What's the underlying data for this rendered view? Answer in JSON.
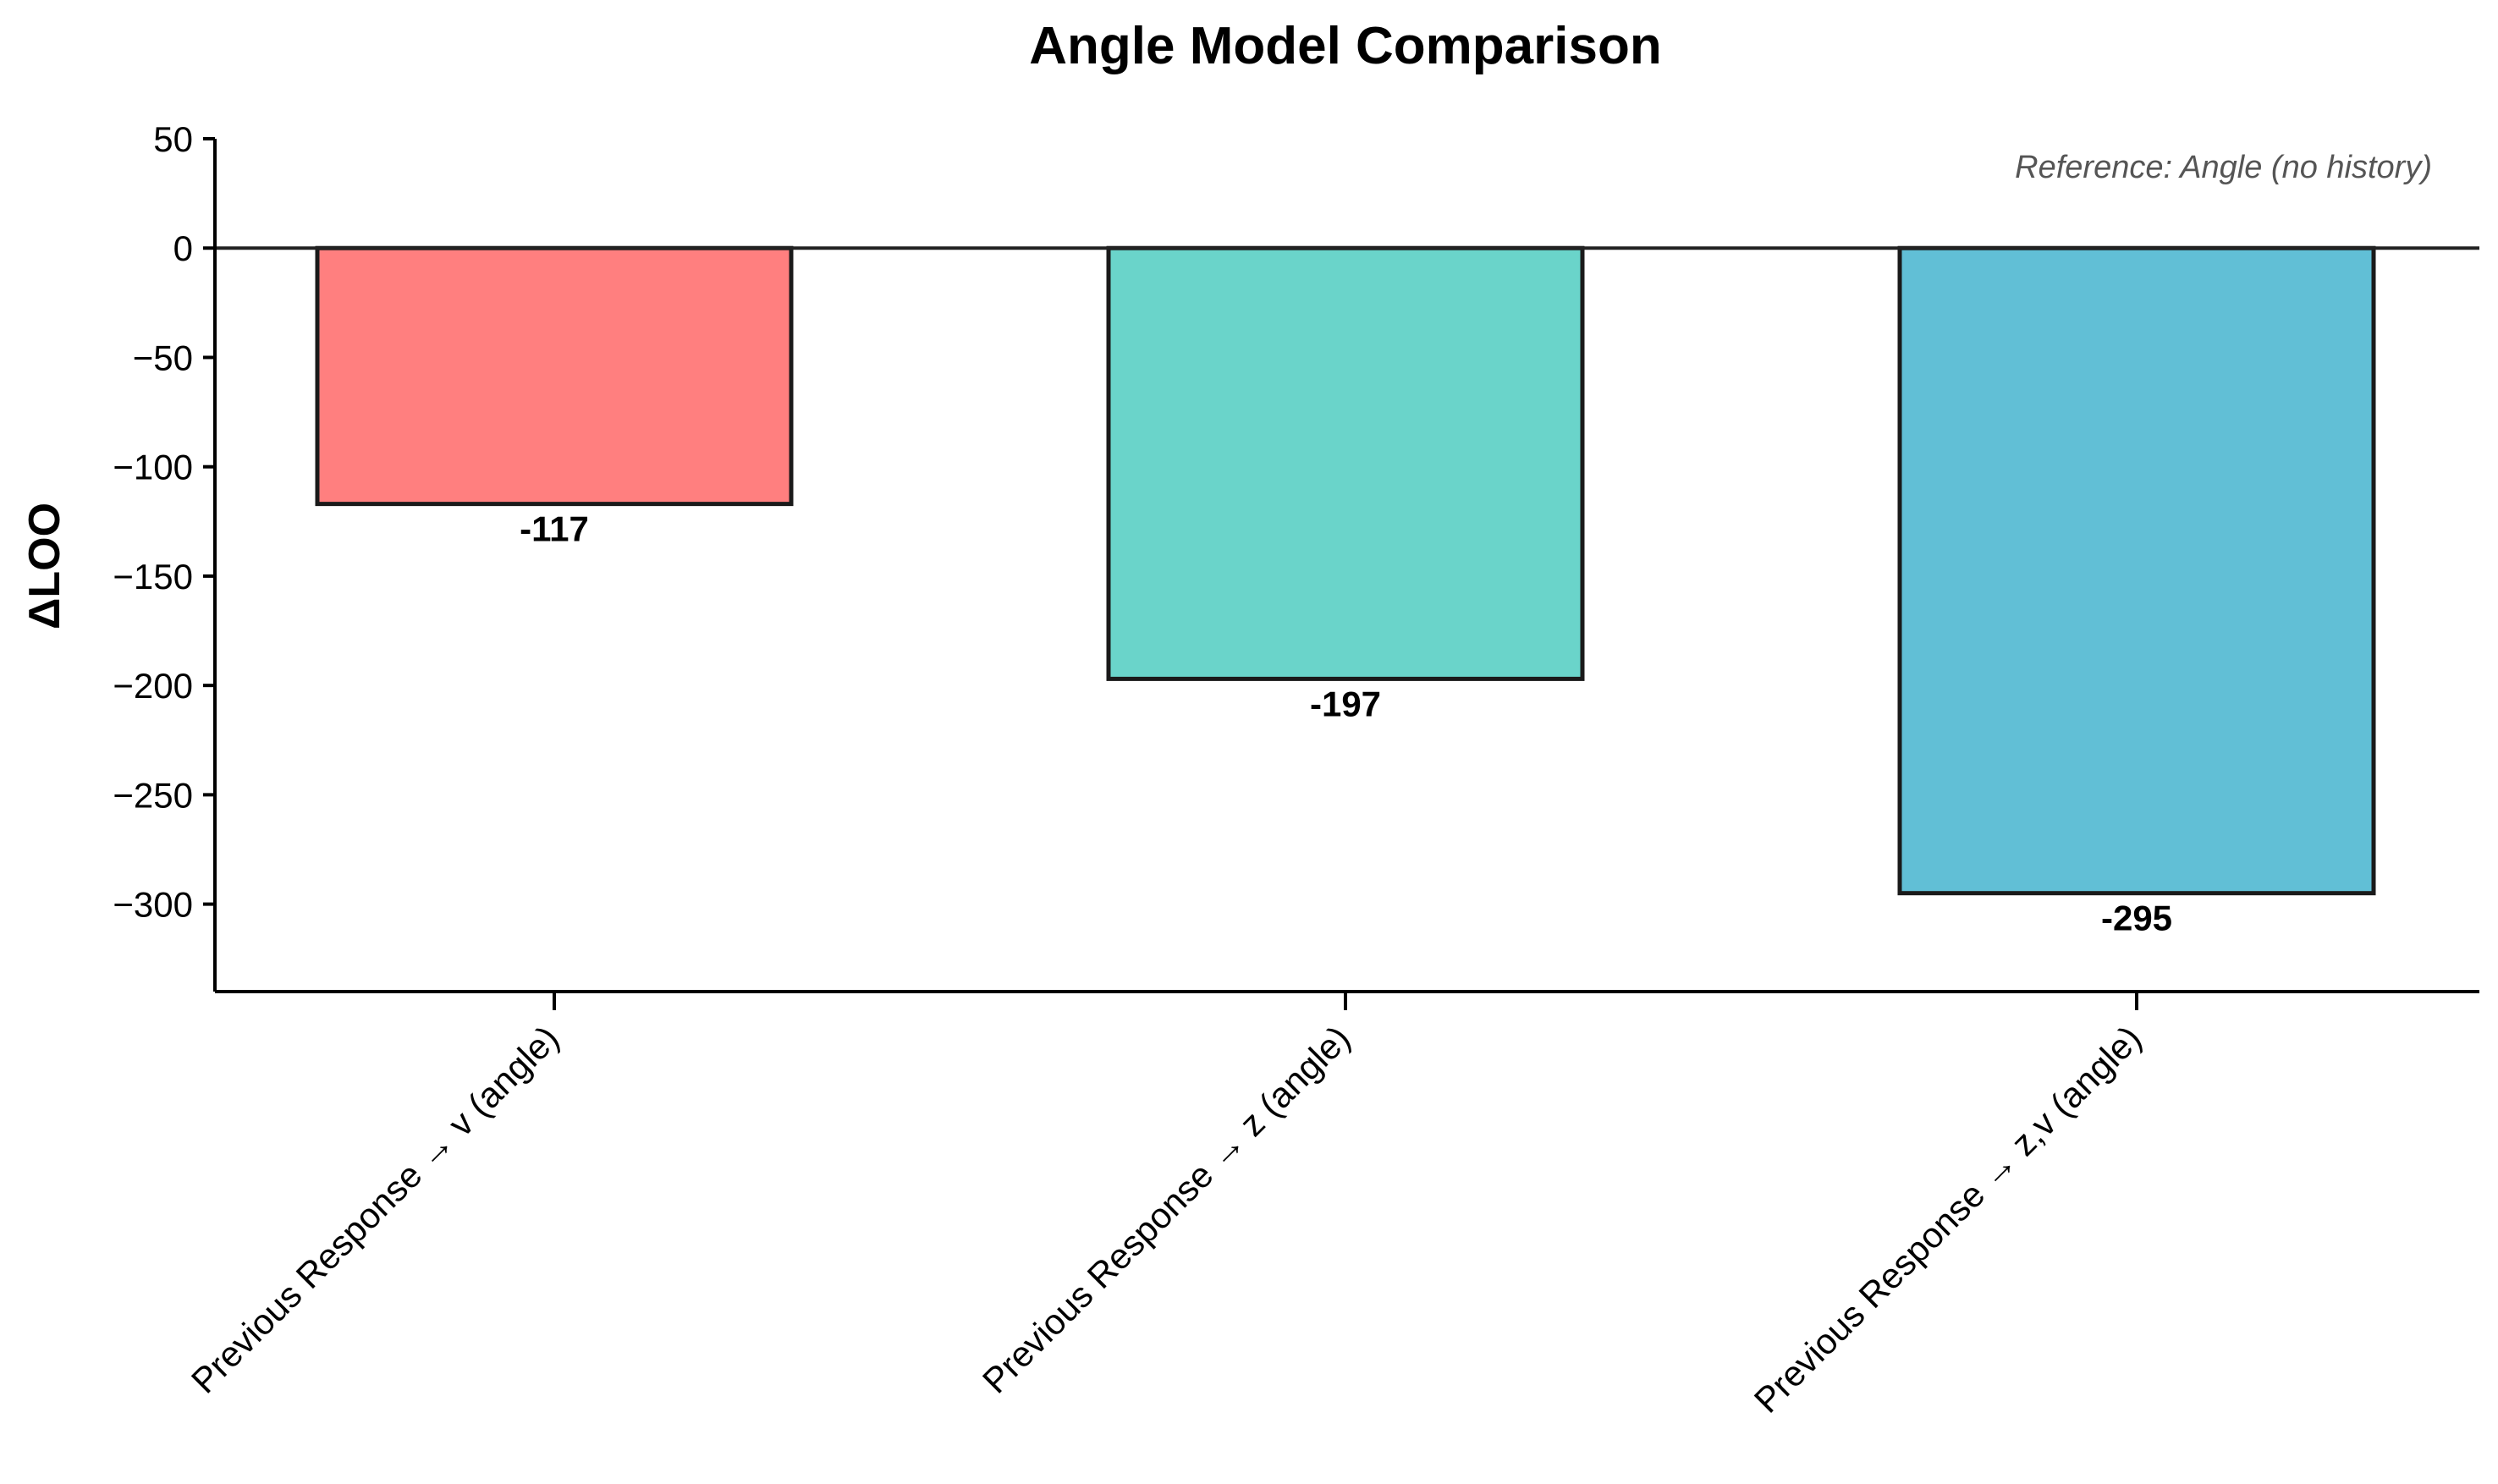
{
  "chart_data": {
    "type": "bar",
    "title": "Angle Model Comparison",
    "xlabel": "",
    "ylabel": "ΔLOO",
    "categories": [
      "Previous Response → v (angle)",
      "Previous Response → z (angle)",
      "Previous Response → z,v (angle)"
    ],
    "values": [
      -117,
      -197,
      -295
    ],
    "value_labels": [
      "-117",
      "-197",
      "-295"
    ],
    "colors": [
      "#FF7F7F",
      "#6AD4CA",
      "#61BFD6"
    ],
    "ylim": [
      -340,
      50
    ],
    "yticks": [
      50,
      0,
      -50,
      -100,
      -150,
      -200,
      -250,
      -300
    ],
    "ytick_labels": [
      "50",
      "0",
      "−50",
      "−100",
      "−150",
      "−200",
      "−250",
      "−300"
    ],
    "annotation": "Reference: Angle (no history)",
    "reference_line": 0,
    "grid": false,
    "legend": "none"
  }
}
